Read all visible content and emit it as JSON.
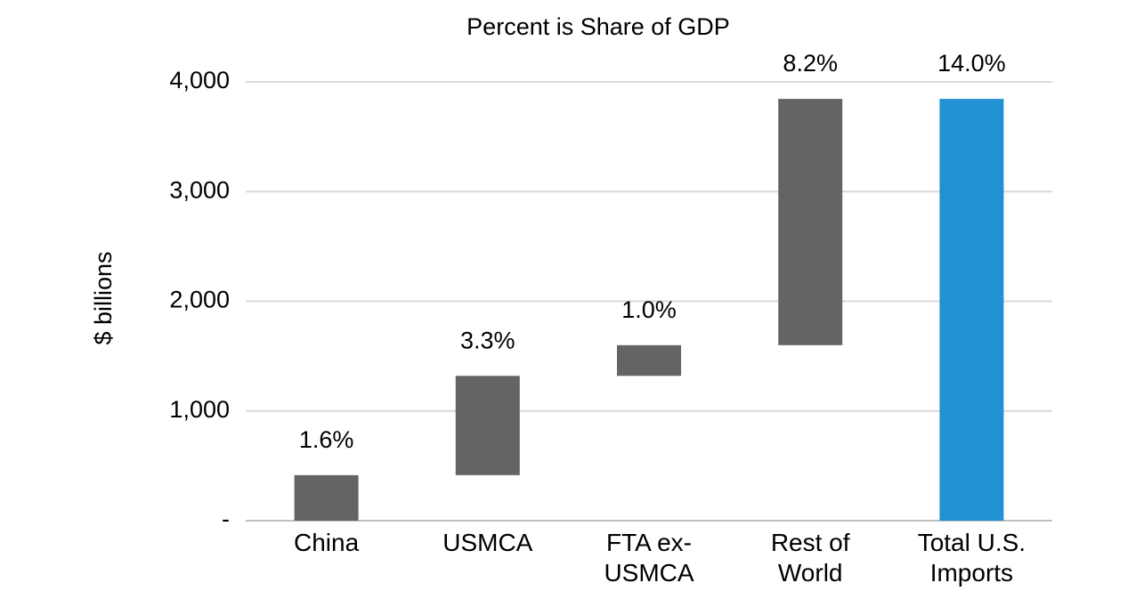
{
  "chart_data": {
    "type": "waterfall",
    "title": "Percent is Share of GDP",
    "y_label": "$ billions",
    "categories": [
      "China",
      "USMCA",
      "FTA ex-USMCA",
      "Rest of World",
      "Total U.S. Imports"
    ],
    "values": [
      415,
      905,
      280,
      2245,
      3845
    ],
    "is_total": [
      false,
      false,
      false,
      false,
      true
    ],
    "colors": [
      "#636564",
      "#636564",
      "#636564",
      "#636564",
      "#2291d1"
    ],
    "share_of_gdp": {
      "values": [
        1.6,
        3.3,
        1.0,
        8.2,
        14.0
      ],
      "value_labels": [
        "1.6%",
        "3.3%",
        "1.0%",
        "8.2%",
        "14.0%"
      ]
    },
    "ylim": [
      0,
      4000
    ],
    "yticks": [
      {
        "value": 0,
        "label": "-"
      },
      {
        "value": 1000,
        "label": "1,000"
      },
      {
        "value": 2000,
        "label": "2,000"
      },
      {
        "value": 3000,
        "label": "3,000"
      },
      {
        "value": 4000,
        "label": "4,000"
      }
    ],
    "grid": true
  }
}
